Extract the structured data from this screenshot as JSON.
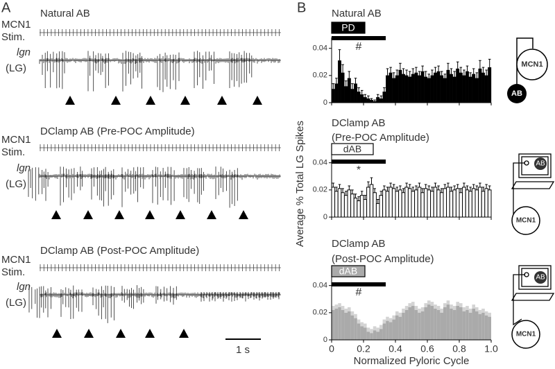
{
  "panel_labels": [
    "A",
    "B"
  ],
  "panel_a": {
    "traces": [
      {
        "title": "Natural AB",
        "stim_label": [
          "MCN1",
          "Stim."
        ],
        "cell": "lgn",
        "cell_sub": "(LG)"
      },
      {
        "title": "DClamp AB (Pre-POC Amplitude)",
        "stim_label": [
          "MCN1",
          "Stim."
        ],
        "cell": "lgn",
        "cell_sub": "(LG)"
      },
      {
        "title": "DClamp AB (Post-POC Amplitude)",
        "stim_label": [
          "MCN1",
          "Stim."
        ],
        "cell": "lgn",
        "cell_sub": "(LG)"
      }
    ],
    "scale_bar": "1 s"
  },
  "diagrams": [
    {
      "cell": "MCN1",
      "model": "AB"
    },
    {
      "cell": "MCN1",
      "model": "AB"
    },
    {
      "cell": "MCN1",
      "model": "AB"
    }
  ],
  "chart_data": [
    {
      "type": "histogram",
      "title": "Natural AB",
      "annotation_box": "PD",
      "annotation_mark": "#",
      "color": "#000000",
      "bins": [
        0,
        0.02,
        0.04,
        0.06,
        0.08,
        0.1,
        0.12,
        0.14,
        0.16,
        0.18,
        0.2,
        0.22,
        0.24,
        0.26,
        0.28,
        0.3,
        0.32,
        0.34,
        0.36,
        0.38,
        0.4,
        0.42,
        0.44,
        0.46,
        0.48,
        0.5,
        0.52,
        0.54,
        0.56,
        0.58,
        0.6,
        0.62,
        0.64,
        0.66,
        0.68,
        0.7,
        0.72,
        0.74,
        0.76,
        0.78,
        0.8,
        0.82,
        0.84,
        0.86,
        0.88,
        0.9,
        0.92,
        0.94,
        0.96,
        0.98,
        1
      ],
      "values": [
        0.01,
        0.014,
        0.031,
        0.022,
        0.012,
        0.018,
        0.01,
        0.014,
        0.008,
        0.006,
        0.004,
        0.003,
        0.002,
        0.001,
        0.004,
        0.003,
        0.008,
        0.02,
        0.022,
        0.018,
        0.02,
        0.024,
        0.021,
        0.02,
        0.019,
        0.021,
        0.022,
        0.02,
        0.023,
        0.019,
        0.018,
        0.02,
        0.022,
        0.023,
        0.02,
        0.018,
        0.024,
        0.021,
        0.019,
        0.025,
        0.022,
        0.02,
        0.023,
        0.019,
        0.021,
        0.018,
        0.025,
        0.022,
        0.02,
        0.026
      ],
      "errors": [
        0.004,
        0.004,
        0.008,
        0.006,
        0.004,
        0.005,
        0.004,
        0.004,
        0.003,
        0.003,
        0.002,
        0.002,
        0.001,
        0.001,
        0.002,
        0.002,
        0.003,
        0.005,
        0.004,
        0.004,
        0.004,
        0.005,
        0.004,
        0.004,
        0.004,
        0.004,
        0.004,
        0.003,
        0.004,
        0.004,
        0.003,
        0.004,
        0.004,
        0.004,
        0.003,
        0.003,
        0.005,
        0.004,
        0.004,
        0.005,
        0.004,
        0.004,
        0.004,
        0.003,
        0.004,
        0.004,
        0.006,
        0.004,
        0.004,
        0.006
      ],
      "xlim": [
        0,
        1
      ],
      "ylim": [
        0,
        0.048
      ],
      "yticks": [
        0,
        0.02,
        0.04
      ]
    },
    {
      "type": "histogram",
      "title": "DClamp AB",
      "subtitle": "(Pre-POC Amplitude)",
      "annotation_box": "dAB",
      "annotation_mark": "*",
      "color": "#ffffff",
      "ylabel": "Average % Total LG Spikes",
      "bins": [
        0,
        0.02,
        0.04,
        0.06,
        0.08,
        0.1,
        0.12,
        0.14,
        0.16,
        0.18,
        0.2,
        0.22,
        0.24,
        0.26,
        0.28,
        0.3,
        0.32,
        0.34,
        0.36,
        0.38,
        0.4,
        0.42,
        0.44,
        0.46,
        0.48,
        0.5,
        0.52,
        0.54,
        0.56,
        0.58,
        0.6,
        0.62,
        0.64,
        0.66,
        0.68,
        0.7,
        0.72,
        0.74,
        0.76,
        0.78,
        0.8,
        0.82,
        0.84,
        0.86,
        0.88,
        0.9,
        0.92,
        0.94,
        0.96,
        0.98,
        1
      ],
      "values": [
        0.022,
        0.019,
        0.021,
        0.018,
        0.016,
        0.02,
        0.017,
        0.014,
        0.012,
        0.016,
        0.013,
        0.022,
        0.024,
        0.018,
        0.01,
        0.016,
        0.02,
        0.019,
        0.022,
        0.021,
        0.019,
        0.02,
        0.018,
        0.022,
        0.021,
        0.019,
        0.02,
        0.022,
        0.018,
        0.021,
        0.02,
        0.019,
        0.022,
        0.02,
        0.018,
        0.021,
        0.022,
        0.019,
        0.02,
        0.021,
        0.018,
        0.022,
        0.02,
        0.019,
        0.021,
        0.02,
        0.022,
        0.019,
        0.021,
        0.02
      ],
      "errors": [
        0.003,
        0.003,
        0.003,
        0.003,
        0.003,
        0.003,
        0.003,
        0.003,
        0.003,
        0.003,
        0.003,
        0.004,
        0.005,
        0.003,
        0.003,
        0.003,
        0.003,
        0.003,
        0.003,
        0.003,
        0.003,
        0.003,
        0.003,
        0.003,
        0.003,
        0.003,
        0.003,
        0.003,
        0.003,
        0.003,
        0.003,
        0.003,
        0.003,
        0.003,
        0.003,
        0.003,
        0.003,
        0.003,
        0.003,
        0.003,
        0.003,
        0.003,
        0.003,
        0.003,
        0.003,
        0.003,
        0.003,
        0.003,
        0.003,
        0.003
      ],
      "xlim": [
        0,
        1
      ],
      "ylim": [
        0,
        0.048
      ],
      "yticks": [
        0,
        0.02,
        0.04
      ]
    },
    {
      "type": "histogram",
      "title": "DClamp AB",
      "subtitle": "(Post-POC Amplitude)",
      "annotation_box": "dAB",
      "annotation_mark": "#",
      "color": "#aaaaaa",
      "xlabel": "Normalized Pyloric Cycle",
      "bins": [
        0,
        0.02,
        0.04,
        0.06,
        0.08,
        0.1,
        0.12,
        0.14,
        0.16,
        0.18,
        0.2,
        0.22,
        0.24,
        0.26,
        0.28,
        0.3,
        0.32,
        0.34,
        0.36,
        0.38,
        0.4,
        0.42,
        0.44,
        0.46,
        0.48,
        0.5,
        0.52,
        0.54,
        0.56,
        0.58,
        0.6,
        0.62,
        0.64,
        0.66,
        0.68,
        0.7,
        0.72,
        0.74,
        0.76,
        0.78,
        0.8,
        0.82,
        0.84,
        0.86,
        0.88,
        0.9,
        0.92,
        0.94,
        0.96,
        0.98,
        1
      ],
      "values": [
        0.022,
        0.023,
        0.024,
        0.022,
        0.02,
        0.021,
        0.018,
        0.016,
        0.012,
        0.01,
        0.009,
        0.006,
        0.005,
        0.007,
        0.006,
        0.008,
        0.012,
        0.014,
        0.013,
        0.015,
        0.018,
        0.017,
        0.02,
        0.022,
        0.024,
        0.025,
        0.022,
        0.02,
        0.021,
        0.024,
        0.026,
        0.025,
        0.023,
        0.022,
        0.02,
        0.024,
        0.026,
        0.023,
        0.022,
        0.025,
        0.024,
        0.021,
        0.022,
        0.02,
        0.023,
        0.021,
        0.019,
        0.02,
        0.018,
        0.017
      ],
      "errors": [
        0.003,
        0.003,
        0.003,
        0.003,
        0.003,
        0.003,
        0.003,
        0.003,
        0.003,
        0.003,
        0.003,
        0.003,
        0.003,
        0.003,
        0.003,
        0.003,
        0.003,
        0.003,
        0.003,
        0.003,
        0.003,
        0.003,
        0.003,
        0.003,
        0.003,
        0.003,
        0.003,
        0.003,
        0.003,
        0.003,
        0.003,
        0.003,
        0.003,
        0.003,
        0.003,
        0.003,
        0.003,
        0.003,
        0.003,
        0.003,
        0.003,
        0.003,
        0.003,
        0.003,
        0.003,
        0.003,
        0.003,
        0.003,
        0.003,
        0.003
      ],
      "xlim": [
        0,
        1
      ],
      "ylim": [
        0,
        0.048
      ],
      "xticks": [
        0,
        0.2,
        0.4,
        0.6,
        0.8,
        {
          "value": 1,
          "label": "1.0"
        }
      ],
      "yticks": [
        0,
        0.02,
        0.04
      ]
    }
  ]
}
